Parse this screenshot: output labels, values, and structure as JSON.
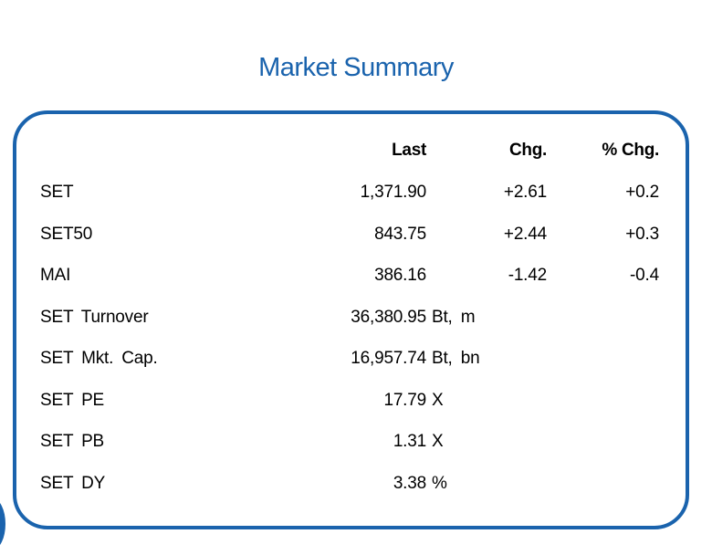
{
  "title": "Market Summary",
  "colors": {
    "accent": "#1a63ad"
  },
  "headers": {
    "last": "Last",
    "chg": "Chg.",
    "pct": "% Chg."
  },
  "rows": [
    {
      "name": "SET",
      "last": "1,371.90",
      "unit": "",
      "chg": "+2.61",
      "pct": "+0.2"
    },
    {
      "name": "SET50",
      "last": "843.75",
      "unit": "",
      "chg": "+2.44",
      "pct": "+0.3"
    },
    {
      "name": "MAI",
      "last": "386.16",
      "unit": "",
      "chg": "-1.42",
      "pct": "-0.4"
    },
    {
      "name": "SET Turnover",
      "last": "36,380.95",
      "unit": "Bt, m",
      "chg": "",
      "pct": ""
    },
    {
      "name": "SET Mkt. Cap.",
      "last": "16,957.74",
      "unit": "Bt, bn",
      "chg": "",
      "pct": ""
    },
    {
      "name": "SET PE",
      "last": "17.79",
      "unit": "X",
      "chg": "",
      "pct": ""
    },
    {
      "name": "SET PB",
      "last": "1.31",
      "unit": "X",
      "chg": "",
      "pct": ""
    },
    {
      "name": "SET DY",
      "last": "3.38",
      "unit": "%",
      "chg": "",
      "pct": ""
    }
  ]
}
